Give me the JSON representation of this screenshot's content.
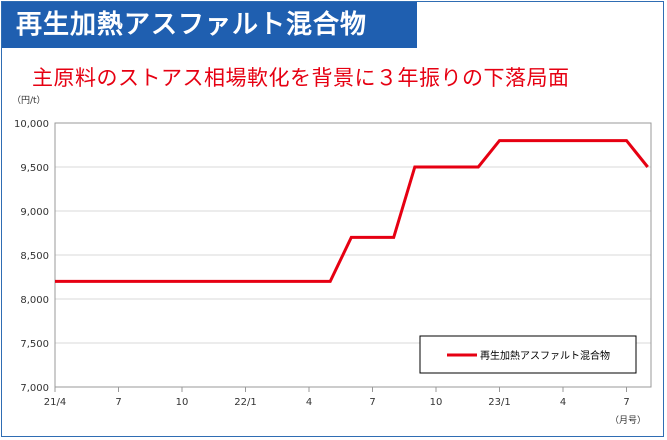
{
  "header": {
    "title": "再生加熱アスファルト混合物",
    "subtitle": "主原料のストアス相場軟化を背景に３年振りの下落局面"
  },
  "colors": {
    "title_bg": "#1f5fb0",
    "subtitle": "#e60012",
    "series": "#e60012",
    "grid": "#d9d9d9"
  },
  "chart_data": {
    "type": "line",
    "ylabel": "（円/t）",
    "xlabel": "（月号）",
    "ylim": [
      7000,
      10000
    ],
    "yticks": [
      7000,
      7500,
      8000,
      8500,
      9000,
      9500,
      10000
    ],
    "ytick_labels": [
      "7,000",
      "7,500",
      "8,000",
      "8,500",
      "9,000",
      "9,500",
      "10,000"
    ],
    "xtick_labels": [
      "21/4",
      "7",
      "10",
      "22/1",
      "4",
      "7",
      "10",
      "23/1",
      "4",
      "7"
    ],
    "grid": "horizontal",
    "legend_position": "bottom-right",
    "series": [
      {
        "name": "再生加熱アスファルト混合物",
        "x": [
          "21/4",
          "21/5",
          "21/6",
          "21/7",
          "21/8",
          "21/9",
          "21/10",
          "21/11",
          "21/12",
          "22/1",
          "22/2",
          "22/3",
          "22/4",
          "22/5",
          "22/6",
          "22/7",
          "22/8",
          "22/9",
          "22/10",
          "22/11",
          "22/12",
          "23/1",
          "23/2",
          "23/3",
          "23/4",
          "23/5",
          "23/6",
          "23/7",
          "23/8"
        ],
        "values": [
          8200,
          8200,
          8200,
          8200,
          8200,
          8200,
          8200,
          8200,
          8200,
          8200,
          8200,
          8200,
          8200,
          8200,
          8700,
          8700,
          8700,
          9500,
          9500,
          9500,
          9500,
          9800,
          9800,
          9800,
          9800,
          9800,
          9800,
          9800,
          9500
        ]
      }
    ]
  }
}
